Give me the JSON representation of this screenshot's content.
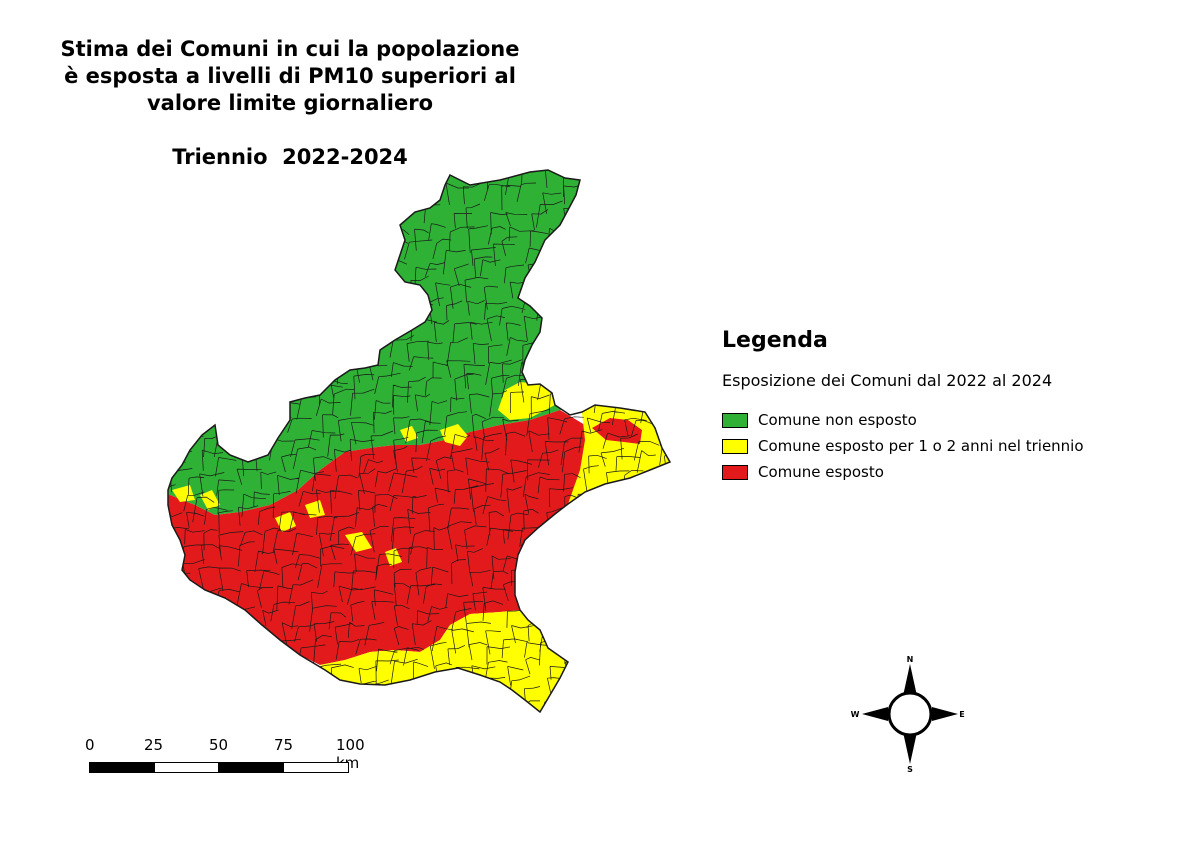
{
  "title": {
    "lines": [
      "Stima dei Comuni in cui la popolazione",
      "è esposta a livelli di PM10 superiori al",
      "valore limite giornaliero"
    ],
    "subtitle": "Triennio  2022-2024"
  },
  "legend": {
    "title": "Legenda",
    "subtitle": "Esposizione dei Comuni dal 2022 al 2024",
    "items": [
      {
        "label": "Comune non esposto",
        "color": "#2eb135"
      },
      {
        "label": "Comune esposto per 1 o 2 anni nel triennio",
        "color": "#ffff00"
      },
      {
        "label": "Comune esposto",
        "color": "#e31a1c"
      }
    ]
  },
  "scale_bar": {
    "ticks": [
      "0",
      "25",
      "50",
      "75",
      "100 km"
    ]
  },
  "compass": {
    "n": "N",
    "s": "S",
    "e": "E",
    "w": "W"
  },
  "map_colors": {
    "green": "#2eb135",
    "yellow": "#ffff00",
    "red": "#e31a1c",
    "border": "#1a1a1a"
  }
}
